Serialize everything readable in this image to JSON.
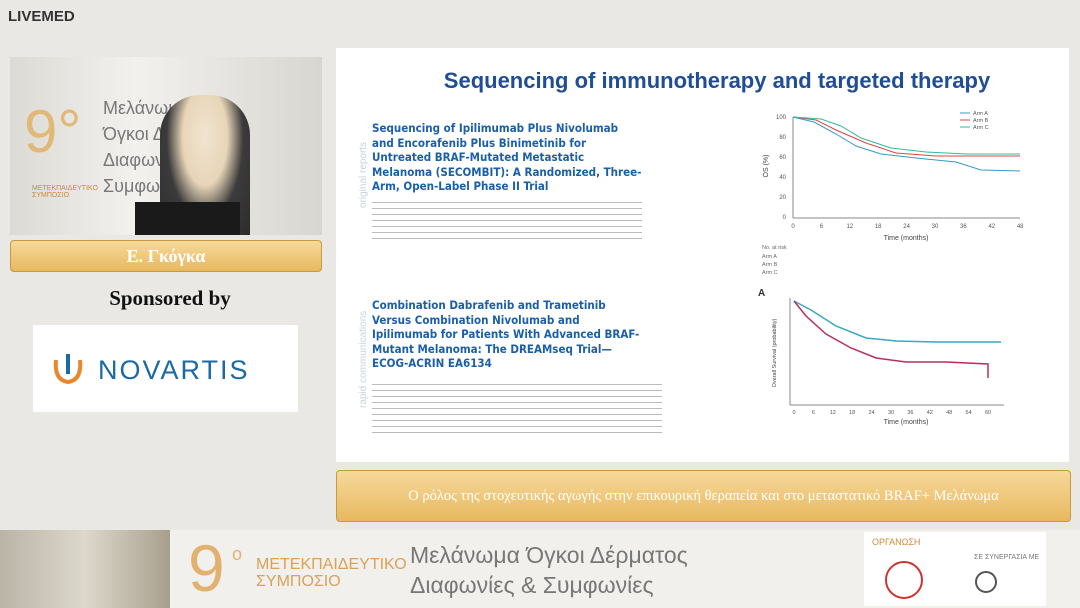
{
  "brand": "LIVEMED",
  "video": {
    "poster_number": "9°",
    "poster_lines": [
      "Μελάνωμα",
      "Όγκοι Δέρ",
      "Διαφωνίε",
      "Συμφω"
    ],
    "poster_sub": "ΜΕΤΕΚΠΑΙΔΕΥΤΙΚΟ ΣΥΜΠΟΣΙΟ"
  },
  "speaker": {
    "name": "Ε. Γκόγκα"
  },
  "sponsor": {
    "label": "Sponsored by",
    "name": "NOVARTIS"
  },
  "slide": {
    "title": "Sequencing of immunotherapy and targeted therapy",
    "articles": [
      {
        "section": "original reports",
        "title": "Sequencing of Ipilimumab Plus Nivolumab and Encorafenib Plus Binimetinib for Untreated BRAF-Mutated Metastatic Melanoma (SECOMBIT): A Randomized, Three-Arm, Open-Label Phase II Trial"
      },
      {
        "section": "rapid communications",
        "title": "Combination Dabrafenib and Trametinib Versus Combination Nivolumab and Ipilimumab for Patients With Advanced BRAF-Mutant Melanoma: The DREAMseq Trial—ECOG-ACRIN EA6134"
      }
    ],
    "km1": {
      "ylabel": "OS (%)",
      "xlabel": "Time (months)",
      "legend": [
        "Arm A",
        "Arm B",
        "Arm C"
      ],
      "yticks": [
        "100",
        "80",
        "60",
        "40",
        "20",
        "0"
      ],
      "xticks": [
        "0",
        "6",
        "12",
        "18",
        "24",
        "30",
        "36",
        "42",
        "48"
      ],
      "at_risk_label": "No. at risk"
    },
    "km2": {
      "panel": "A",
      "ylabel": "Overall Survival (probability)",
      "xlabel": "Time (months)",
      "xticks": [
        "0",
        "6",
        "12",
        "18",
        "24",
        "30",
        "36",
        "42",
        "48",
        "54",
        "60"
      ]
    }
  },
  "caption": "Ο ρόλος της στοχευτικής αγωγής στην επικουρική θεραπεία και στο μεταστατικό BRAF+ Μελάνωμα",
  "footer": {
    "number": "9",
    "degree": "ο",
    "symposium": [
      "ΜΕΤΕΚΠΑΙΔΕΥΤΙΚΟ",
      "ΣΥΜΠΟΣΙΟ"
    ],
    "theme": [
      "Μελάνωμα Όγκοι Δέρματος",
      "Διαφωνίες & Συμφωνίες"
    ],
    "organizer": "ΟΡΓΑΝΩΣΗ",
    "partner": "ΣΕ ΣΥΝΕΡΓΑΣΙΑ ΜΕ"
  }
}
